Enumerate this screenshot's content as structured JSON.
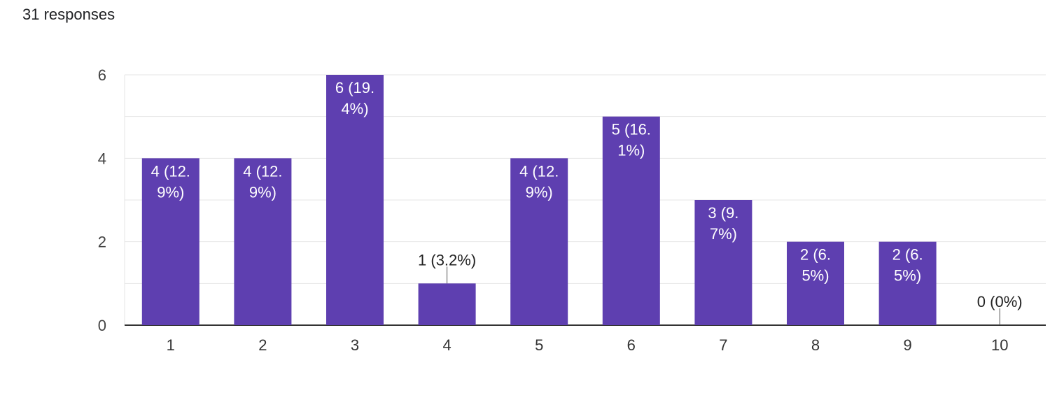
{
  "header": {
    "responses_label": "31 responses"
  },
  "colors": {
    "bar": "#5e3fb0",
    "grid": "#e6e6e6",
    "axis": "#333333",
    "label_inside": "#ffffff",
    "label_outside": "#222222"
  },
  "chart_data": {
    "type": "bar",
    "categories": [
      "1",
      "2",
      "3",
      "4",
      "5",
      "6",
      "7",
      "8",
      "9",
      "10"
    ],
    "values": [
      4,
      4,
      6,
      1,
      4,
      5,
      3,
      2,
      2,
      0
    ],
    "data_labels": [
      [
        "4 (12.",
        "9%)"
      ],
      [
        "4 (12.",
        "9%)"
      ],
      [
        "6 (19.",
        "4%)"
      ],
      [
        "1 (3.2%)"
      ],
      [
        "4 (12.",
        "9%)"
      ],
      [
        "5 (16.",
        "1%)"
      ],
      [
        "3 (9.",
        "7%)"
      ],
      [
        "2 (6.",
        "5%)"
      ],
      [
        "2 (6.",
        "5%)"
      ],
      [
        "0 (0%)"
      ]
    ],
    "ylim": [
      0,
      6
    ],
    "yticks": [
      "0",
      "2",
      "4",
      "6"
    ],
    "grid": true,
    "title": "",
    "xlabel": "",
    "ylabel": ""
  }
}
